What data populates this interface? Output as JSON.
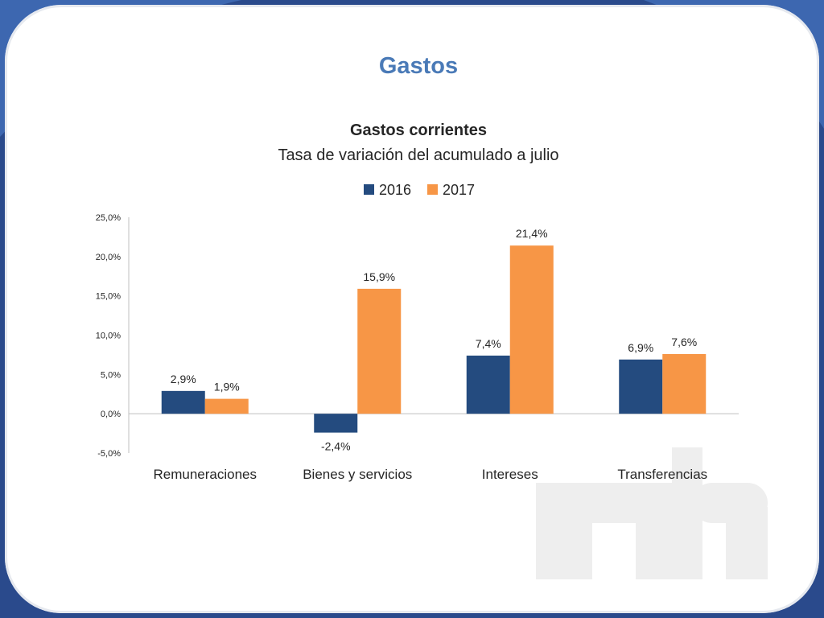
{
  "page": {
    "title": "Gastos"
  },
  "watermark": {
    "logo_text": "mh"
  },
  "colors": {
    "background_frame": "#2a4a8c",
    "title": "#4a7ab7",
    "series_2016": "#244b7f",
    "series_2017": "#f79646",
    "axis": "#bfbfbf",
    "text": "#262626"
  },
  "chart_data": {
    "type": "bar",
    "title": "Gastos corrientes",
    "subtitle": "Tasa de variación del acumulado a julio",
    "legend_position": "top",
    "categories": [
      "Remuneraciones",
      "Bienes y servicios",
      "Intereses",
      "Transferencias"
    ],
    "series": [
      {
        "name": "2016",
        "color": "#244b7f",
        "values": [
          2.9,
          -2.4,
          7.4,
          6.9
        ],
        "labels": [
          "2,9%",
          "-2,4%",
          "7,4%",
          "6,9%"
        ]
      },
      {
        "name": "2017",
        "color": "#f79646",
        "values": [
          1.9,
          15.9,
          21.4,
          7.6
        ],
        "labels": [
          "1,9%",
          "15,9%",
          "21,4%",
          "7,6%"
        ]
      }
    ],
    "ylim": [
      -5,
      25
    ],
    "yticks": [
      25,
      20,
      15,
      10,
      5,
      0,
      -5
    ],
    "ytick_labels": [
      "25,0%",
      "20,0%",
      "15,0%",
      "10,0%",
      "5,0%",
      "0,0%",
      "-5,0%"
    ],
    "grid": false,
    "xlabel": "",
    "ylabel": ""
  }
}
